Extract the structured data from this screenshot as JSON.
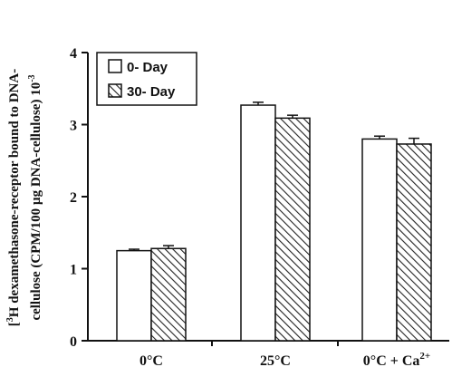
{
  "chart_data": {
    "type": "bar",
    "categories": [
      "0°C",
      "25°C",
      "0°C + Ca"
    ],
    "category_superscripts": [
      "",
      "",
      "2+"
    ],
    "series": [
      {
        "name": "0- Day",
        "values": [
          1.25,
          3.27,
          2.8
        ],
        "errors": [
          0.02,
          0.04,
          0.04
        ],
        "pattern": "open"
      },
      {
        "name": "30- Day",
        "values": [
          1.28,
          3.09,
          2.73
        ],
        "errors": [
          0.04,
          0.04,
          0.08
        ],
        "pattern": "hatched"
      }
    ],
    "ylim": [
      0,
      4
    ],
    "yticks": [
      "0",
      "1",
      "2",
      "3",
      "4"
    ],
    "ylabel_line1_pre": "[",
    "ylabel_line1_sup": "3",
    "ylabel_line1_main": "H dexamethasone-receptor bound to DNA-",
    "ylabel_line2_main": "cellulose (CPM/100 µg DNA-cellulose) 10",
    "ylabel_line2_sup": "-3",
    "legend_position": "top-left",
    "grid": false,
    "colors": {
      "bar_outline": "#111111",
      "open_fill": "#ffffff",
      "hatch": "#222222"
    }
  }
}
